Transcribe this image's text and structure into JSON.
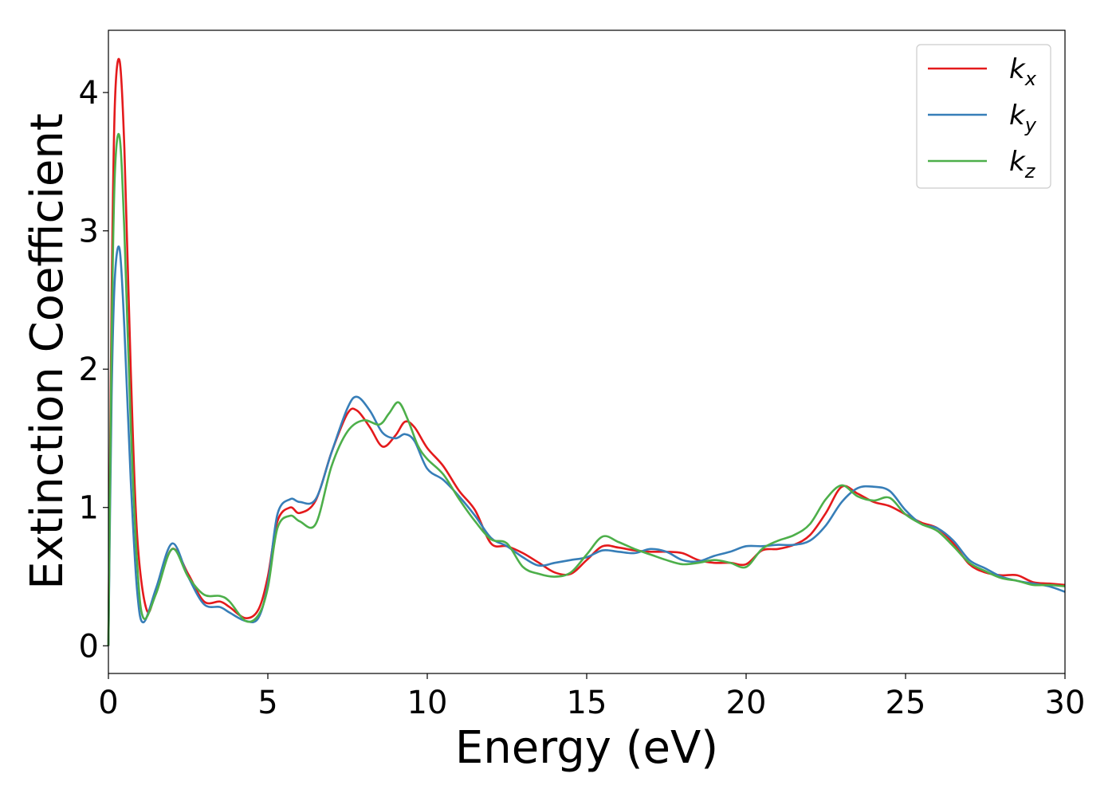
{
  "chart_data": {
    "type": "line",
    "xlabel": "Energy (eV)",
    "ylabel": "Extinction Coefficient",
    "xlim": [
      0,
      30
    ],
    "ylim": [
      -0.2,
      4.45
    ],
    "xticks": [
      0,
      5,
      10,
      15,
      20,
      25,
      30
    ],
    "xtick_labels": [
      "0",
      "5",
      "10",
      "15",
      "20",
      "25",
      "30"
    ],
    "yticks": [
      0,
      1,
      2,
      3,
      4
    ],
    "ytick_labels": [
      "0",
      "1",
      "2",
      "3",
      "4"
    ],
    "grid": false,
    "legend_position": "top-right",
    "series": [
      {
        "name": "k",
        "subscript": "x",
        "color": "#e41a1c",
        "x": [
          0,
          0.1,
          0.2,
          0.35,
          0.5,
          0.7,
          0.9,
          1.2,
          1.5,
          2.0,
          2.5,
          3.0,
          3.5,
          3.8,
          4.3,
          4.7,
          5.0,
          5.3,
          5.7,
          6.0,
          6.5,
          7.0,
          7.5,
          7.8,
          8.2,
          8.6,
          9.0,
          9.3,
          9.6,
          10.0,
          10.5,
          11.0,
          11.5,
          12.0,
          12.5,
          13.0,
          13.5,
          14.0,
          14.5,
          15.0,
          15.5,
          16.0,
          16.5,
          17.0,
          17.5,
          18.0,
          18.5,
          19.0,
          19.5,
          20.0,
          20.5,
          21.0,
          21.5,
          22.0,
          22.5,
          23.0,
          23.5,
          24.0,
          24.5,
          25.0,
          25.5,
          26.0,
          26.5,
          27.0,
          27.5,
          28.0,
          28.5,
          29.0,
          29.5,
          30.0
        ],
        "y": [
          0,
          2.5,
          3.9,
          4.23,
          3.6,
          2.0,
          0.8,
          0.26,
          0.4,
          0.7,
          0.52,
          0.32,
          0.32,
          0.28,
          0.2,
          0.26,
          0.5,
          0.9,
          1.0,
          0.96,
          1.05,
          1.4,
          1.68,
          1.7,
          1.58,
          1.44,
          1.52,
          1.62,
          1.58,
          1.43,
          1.3,
          1.12,
          0.98,
          0.74,
          0.72,
          0.67,
          0.6,
          0.53,
          0.52,
          0.62,
          0.72,
          0.71,
          0.69,
          0.68,
          0.68,
          0.67,
          0.62,
          0.6,
          0.6,
          0.59,
          0.69,
          0.7,
          0.73,
          0.8,
          0.96,
          1.15,
          1.1,
          1.04,
          1.01,
          0.95,
          0.89,
          0.85,
          0.74,
          0.59,
          0.53,
          0.51,
          0.51,
          0.46,
          0.45,
          0.44
        ]
      },
      {
        "name": "k",
        "subscript": "y",
        "color": "#377eb8",
        "x": [
          0,
          0.1,
          0.2,
          0.35,
          0.5,
          0.7,
          0.9,
          1.1,
          1.5,
          2.0,
          2.5,
          3.0,
          3.5,
          3.8,
          4.3,
          4.7,
          5.0,
          5.3,
          5.7,
          6.0,
          6.5,
          7.0,
          7.5,
          7.8,
          8.2,
          8.6,
          9.0,
          9.3,
          9.6,
          10.0,
          10.5,
          11.0,
          11.5,
          12.0,
          12.5,
          13.0,
          13.5,
          14.0,
          14.5,
          15.0,
          15.5,
          16.0,
          16.5,
          17.0,
          17.5,
          18.0,
          18.5,
          19.0,
          19.5,
          20.0,
          20.5,
          21.0,
          21.5,
          22.0,
          22.5,
          23.0,
          23.5,
          24.0,
          24.5,
          25.0,
          25.5,
          26.0,
          26.5,
          27.0,
          27.5,
          28.0,
          28.5,
          29.0,
          29.5,
          30.0
        ],
        "y": [
          0,
          1.8,
          2.65,
          2.87,
          2.3,
          1.2,
          0.4,
          0.17,
          0.42,
          0.74,
          0.5,
          0.3,
          0.28,
          0.24,
          0.18,
          0.2,
          0.45,
          0.95,
          1.06,
          1.04,
          1.06,
          1.4,
          1.72,
          1.8,
          1.7,
          1.54,
          1.5,
          1.53,
          1.48,
          1.28,
          1.2,
          1.08,
          0.94,
          0.78,
          0.72,
          0.64,
          0.58,
          0.6,
          0.62,
          0.64,
          0.69,
          0.68,
          0.67,
          0.7,
          0.68,
          0.62,
          0.61,
          0.65,
          0.68,
          0.72,
          0.72,
          0.73,
          0.73,
          0.76,
          0.87,
          1.04,
          1.14,
          1.15,
          1.12,
          0.98,
          0.88,
          0.85,
          0.76,
          0.62,
          0.56,
          0.5,
          0.47,
          0.45,
          0.43,
          0.39
        ]
      },
      {
        "name": "k",
        "subscript": "z",
        "color": "#4daf4a",
        "x": [
          0,
          0.1,
          0.2,
          0.35,
          0.5,
          0.7,
          0.9,
          1.1,
          1.5,
          2.0,
          2.5,
          3.0,
          3.5,
          3.8,
          4.3,
          4.7,
          5.0,
          5.3,
          5.7,
          6.0,
          6.5,
          7.0,
          7.5,
          8.0,
          8.5,
          8.8,
          9.1,
          9.4,
          9.7,
          10.0,
          10.5,
          11.0,
          11.5,
          12.0,
          12.5,
          13.0,
          13.5,
          14.0,
          14.5,
          15.0,
          15.5,
          16.0,
          16.5,
          17.0,
          17.5,
          18.0,
          18.5,
          19.0,
          19.5,
          20.0,
          20.5,
          21.0,
          21.5,
          22.0,
          22.5,
          23.0,
          23.5,
          24.0,
          24.5,
          25.0,
          25.5,
          26.0,
          26.5,
          27.0,
          27.5,
          28.0,
          28.5,
          29.0,
          29.5,
          30.0
        ],
        "y": [
          0,
          2.2,
          3.4,
          3.68,
          3.0,
          1.6,
          0.6,
          0.2,
          0.38,
          0.7,
          0.5,
          0.37,
          0.36,
          0.32,
          0.18,
          0.22,
          0.42,
          0.85,
          0.94,
          0.9,
          0.88,
          1.3,
          1.55,
          1.63,
          1.6,
          1.68,
          1.76,
          1.63,
          1.45,
          1.35,
          1.24,
          1.06,
          0.9,
          0.77,
          0.74,
          0.57,
          0.52,
          0.5,
          0.53,
          0.66,
          0.79,
          0.75,
          0.7,
          0.66,
          0.62,
          0.59,
          0.6,
          0.62,
          0.6,
          0.57,
          0.7,
          0.76,
          0.8,
          0.88,
          1.06,
          1.16,
          1.08,
          1.05,
          1.07,
          0.95,
          0.88,
          0.83,
          0.72,
          0.6,
          0.54,
          0.49,
          0.47,
          0.44,
          0.44,
          0.43
        ]
      }
    ]
  }
}
